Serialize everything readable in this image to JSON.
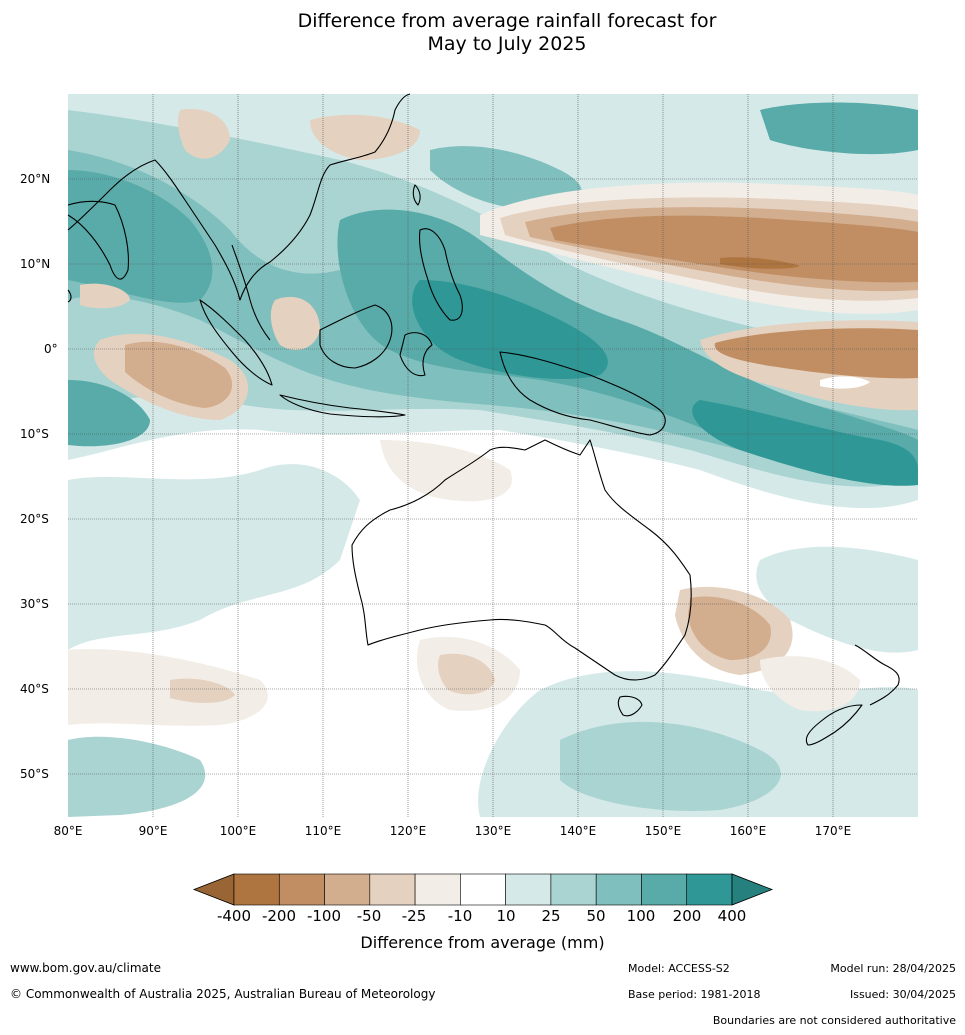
{
  "title": {
    "line1": "Difference from average rainfall forecast for",
    "line2": "May to July 2025"
  },
  "map": {
    "lon_ticks": [
      "80°E",
      "90°E",
      "100°E",
      "110°E",
      "120°E",
      "130°E",
      "140°E",
      "150°E",
      "160°E",
      "170°E"
    ],
    "lat_ticks": [
      "20°N",
      "10°N",
      "0°",
      "10°S",
      "20°S",
      "30°S",
      "40°S",
      "50°S"
    ],
    "lon_range": [
      80,
      180
    ],
    "lat_range": [
      -55,
      30
    ],
    "gridlines": true
  },
  "colorbar": {
    "label": "Difference from average (mm)",
    "ticks": [
      "-400",
      "-200",
      "-100",
      "-50",
      "-25",
      "-10",
      "10",
      "25",
      "50",
      "100",
      "200",
      "400"
    ],
    "colors": [
      "#9a6534",
      "#ae7540",
      "#c08e62",
      "#d2ad8e",
      "#e5d1bf",
      "#f2ede6",
      "#ffffff",
      "#d5e9e9",
      "#a9d4d2",
      "#7fbfbd",
      "#58aba8",
      "#2f9896",
      "#25807e"
    ],
    "extend": "both"
  },
  "footer": {
    "website": "www.bom.gov.au/climate",
    "copyright": "© Commonwealth of Australia 2025, Australian Bureau of Meteorology",
    "model": "Model: ACCESS-S2",
    "base_period": "Base period: 1981-2018",
    "model_run": "Model run: 28/04/2025",
    "issued": "Issued: 30/04/2025",
    "disclaimer": "Boundaries are not considered authoritative"
  }
}
